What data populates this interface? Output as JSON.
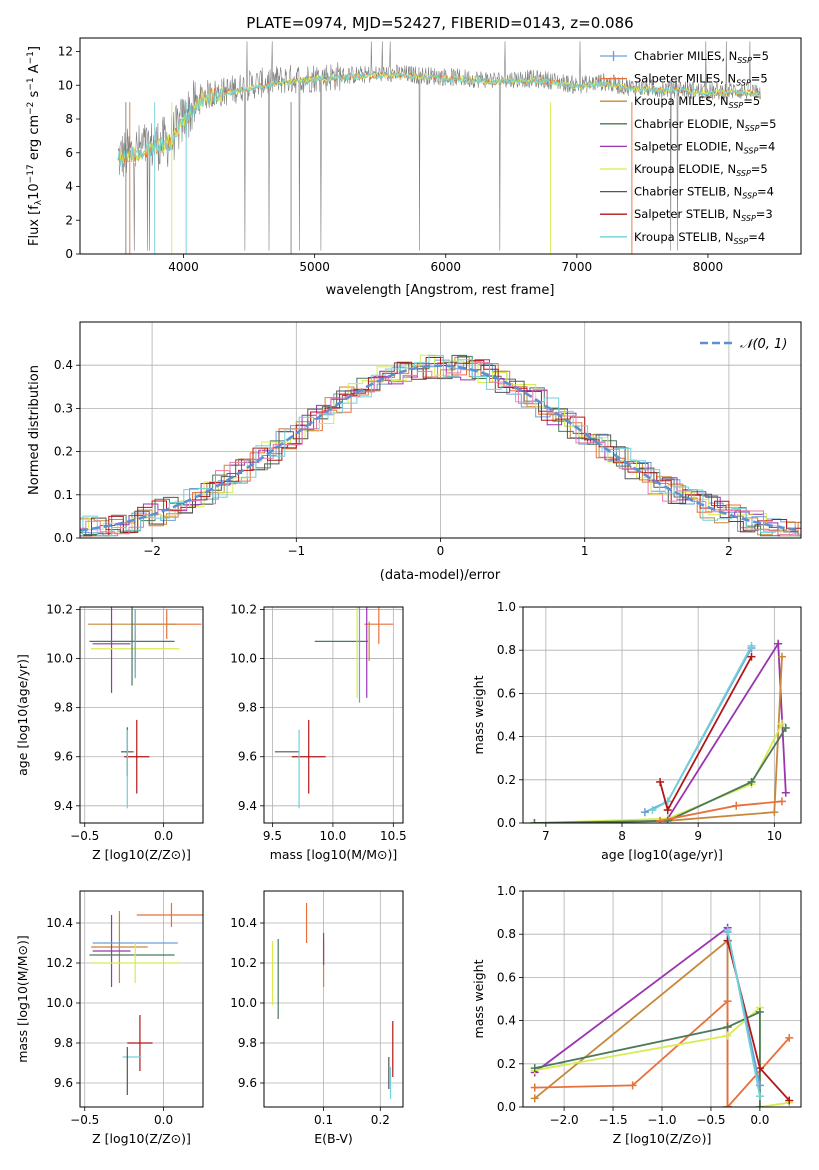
{
  "figure": {
    "title": "PLATE=0974, MJD=52427, FIBERID=0143, z=0.086"
  },
  "models": [
    {
      "name": "Chabrier MILES",
      "nssp": "5",
      "color": "#6a9ed6"
    },
    {
      "name": "Salpeter MILES",
      "nssp": "5",
      "color": "#e8703a"
    },
    {
      "name": "Kroupa MILES",
      "nssp": "5",
      "color": "#c8883a"
    },
    {
      "name": "Chabrier ELODIE",
      "nssp": "5",
      "color": "#4a7a5a"
    },
    {
      "name": "Salpeter ELODIE",
      "nssp": "4",
      "color": "#9a34b0"
    },
    {
      "name": "Kroupa ELODIE",
      "nssp": "5",
      "color": "#d8ec50"
    },
    {
      "name": "Chabrier STELIB",
      "nssp": "4",
      "color": "#555555"
    },
    {
      "name": "Salpeter STELIB",
      "nssp": "3",
      "color": "#b01818"
    },
    {
      "name": "Kroupa STELIB",
      "nssp": "4",
      "color": "#70d0d8"
    }
  ],
  "chart_data": [
    {
      "id": "spectrum",
      "type": "line",
      "xlabel": "wavelength [Angstrom, rest frame]",
      "ylabel": "Flux [f_λ 10^-17 erg cm^-2 s^-1 A^-1]",
      "xlim": [
        3210,
        8710
      ],
      "ylim": [
        0,
        12.8
      ],
      "xticks": [
        4000,
        5000,
        6000,
        7000,
        8000
      ],
      "yticks": [
        0,
        2,
        4,
        6,
        8,
        10,
        12
      ],
      "legend": "right",
      "series": [
        {
          "name": "data",
          "color": "#808080",
          "x": [
            3500,
            3700,
            3900,
            4000,
            4150,
            4300,
            4500,
            4700,
            4900,
            5100,
            5300,
            5600,
            5800,
            6000,
            6200,
            6400,
            6600,
            6800,
            7000,
            7200,
            7400,
            7600,
            7800,
            8000,
            8200,
            8400
          ],
          "values": [
            5.7,
            6.3,
            6.7,
            8.0,
            9.4,
            9.6,
            10.0,
            10.3,
            10.4,
            10.5,
            10.6,
            10.7,
            10.6,
            10.5,
            10.4,
            10.3,
            10.4,
            10.3,
            10.0,
            10.2,
            9.9,
            9.8,
            9.8,
            9.6,
            9.7,
            9.6
          ]
        },
        {
          "name": "model",
          "color": "#70d0d8",
          "x": [
            3500,
            3700,
            3900,
            4000,
            4150,
            4300,
            4500,
            4700,
            4900,
            5100,
            5300,
            5600,
            5800,
            6000,
            6200,
            6400,
            6600,
            6800,
            7000,
            7200,
            7400,
            7600,
            7800,
            8000,
            8200,
            8400
          ],
          "values": [
            5.6,
            6.1,
            6.6,
            7.9,
            9.2,
            9.5,
            9.8,
            10.1,
            10.3,
            10.4,
            10.5,
            10.6,
            10.5,
            10.4,
            10.3,
            10.2,
            10.3,
            10.2,
            9.9,
            10.1,
            9.8,
            9.7,
            9.7,
            9.5,
            9.6,
            9.5
          ]
        }
      ]
    },
    {
      "id": "residuals",
      "type": "bar",
      "xlabel": "(data-model)/error",
      "ylabel": "Normed distribution",
      "xlim": [
        -2.5,
        2.5
      ],
      "ylim": [
        0,
        0.5
      ],
      "xticks": [
        -2,
        -1,
        0,
        1,
        2
      ],
      "yticks": [
        0.0,
        0.1,
        0.2,
        0.3,
        0.4
      ],
      "legend": "top-right",
      "legend_label": "N(0,1)",
      "grid": true
    },
    {
      "id": "age_vs_Z",
      "type": "scatter",
      "xlabel": "Z [log10(Z/Z⊙)]",
      "ylabel": "age [log10(age/yr)]",
      "xlim": [
        -0.53,
        0.25
      ],
      "ylim": [
        9.33,
        10.21
      ],
      "xticks": [
        -0.5,
        0.0
      ],
      "yticks": [
        9.4,
        9.6,
        9.8,
        10.0,
        10.2
      ]
    },
    {
      "id": "age_vs_mass",
      "type": "scatter",
      "xlabel": "mass [log10(M/M⊙)]",
      "xlim": [
        9.43,
        10.58
      ],
      "ylim": [
        9.33,
        10.21
      ],
      "xticks": [
        9.5,
        10.0,
        10.5
      ],
      "yticks": [
        9.4,
        9.6,
        9.8,
        10.0,
        10.2
      ]
    },
    {
      "id": "massweight_vs_age",
      "type": "line",
      "xlabel": "age [log10(age/yr)]",
      "ylabel": "mass weight",
      "xlim": [
        6.7,
        10.35
      ],
      "ylim": [
        0,
        1.0
      ],
      "xticks": [
        7,
        8,
        9,
        10
      ],
      "yticks": [
        0.0,
        0.2,
        0.4,
        0.6,
        0.8,
        1.0
      ],
      "series": [
        {
          "name": "Chabrier MILES",
          "x": [
            8.3,
            8.6,
            9.7
          ],
          "values": [
            0.05,
            0.1,
            0.81
          ]
        },
        {
          "name": "Kroupa STELIB",
          "x": [
            8.4,
            8.6,
            9.7
          ],
          "values": [
            0.06,
            0.1,
            0.82
          ]
        },
        {
          "name": "Salpeter STELIB",
          "x": [
            8.5,
            8.6,
            9.7
          ],
          "values": [
            0.19,
            0.06,
            0.77
          ]
        },
        {
          "name": "Salpeter ELODIE",
          "x": [
            8.6,
            10.05,
            10.15
          ],
          "values": [
            0.02,
            0.83,
            0.14
          ]
        },
        {
          "name": "Kroupa MILES",
          "x": [
            6.85,
            8.6,
            10.0,
            10.1
          ],
          "values": [
            0.0,
            0.01,
            0.05,
            0.77
          ]
        },
        {
          "name": "Kroupa ELODIE",
          "x": [
            6.85,
            8.6,
            9.7,
            10.1
          ],
          "values": [
            0.0,
            0.02,
            0.18,
            0.46
          ]
        },
        {
          "name": "Chabrier ELODIE",
          "x": [
            6.85,
            8.6,
            9.7,
            10.15
          ],
          "values": [
            0.0,
            0.01,
            0.19,
            0.44
          ]
        },
        {
          "name": "Salpeter MILES",
          "x": [
            8.5,
            9.5,
            10.1
          ],
          "values": [
            0.01,
            0.08,
            0.1
          ]
        }
      ]
    },
    {
      "id": "mass_vs_Z",
      "type": "scatter",
      "xlabel": "Z [log10(Z/Z⊙)]",
      "ylabel": "mass [log10(M/M⊙)]",
      "xlim": [
        -0.53,
        0.25
      ],
      "ylim": [
        9.48,
        10.56
      ],
      "xticks": [
        -0.5,
        0.0
      ],
      "yticks": [
        9.6,
        9.8,
        10.0,
        10.2,
        10.4
      ]
    },
    {
      "id": "mass_vs_EBV",
      "type": "scatter",
      "xlabel": "E(B-V)",
      "xlim": [
        -0.005,
        0.24
      ],
      "ylim": [
        9.48,
        10.56
      ],
      "xticks": [
        0.1,
        0.2
      ],
      "yticks": [
        9.6,
        9.8,
        10.0,
        10.2,
        10.4
      ]
    },
    {
      "id": "massweight_vs_Z",
      "type": "line",
      "xlabel": "Z [log10(Z/Z⊙)]",
      "ylabel": "mass weight",
      "xlim": [
        -2.42,
        0.42
      ],
      "ylim": [
        0,
        1.0
      ],
      "xticks": [
        -2.0,
        -1.5,
        -1.0,
        -0.5,
        0.0
      ],
      "yticks": [
        0.0,
        0.2,
        0.4,
        0.6,
        0.8,
        1.0
      ],
      "series": [
        {
          "name": "Salpeter ELODIE",
          "x": [
            -2.3,
            -0.33,
            -0.33
          ],
          "values": [
            0.16,
            0.83,
            0.0
          ]
        },
        {
          "name": "Kroupa MILES",
          "x": [
            -2.3,
            -0.33,
            -0.33
          ],
          "values": [
            0.04,
            0.77,
            0.0
          ]
        },
        {
          "name": "Salpeter MILES",
          "x": [
            -2.3,
            -1.3,
            -0.33,
            -0.33,
            0.3
          ],
          "values": [
            0.09,
            0.1,
            0.49,
            0.0,
            0.32
          ]
        },
        {
          "name": "Kroupa ELODIE",
          "x": [
            -2.3,
            -0.33,
            0.0,
            0.0,
            0.3
          ],
          "values": [
            0.17,
            0.33,
            0.46,
            0.0,
            0.02
          ]
        },
        {
          "name": "Chabrier ELODIE",
          "x": [
            -2.3,
            -0.33,
            0.0,
            0.0
          ],
          "values": [
            0.18,
            0.37,
            0.44,
            0.0
          ]
        },
        {
          "name": "Salpeter STELIB",
          "x": [
            -0.33,
            0.0,
            0.3
          ],
          "values": [
            0.77,
            0.18,
            0.03
          ]
        },
        {
          "name": "Chabrier MILES",
          "x": [
            -0.33,
            0.0
          ],
          "values": [
            0.81,
            0.1
          ]
        },
        {
          "name": "Kroupa STELIB",
          "x": [
            -0.33,
            0.0
          ],
          "values": [
            0.82,
            0.05
          ]
        }
      ]
    }
  ]
}
